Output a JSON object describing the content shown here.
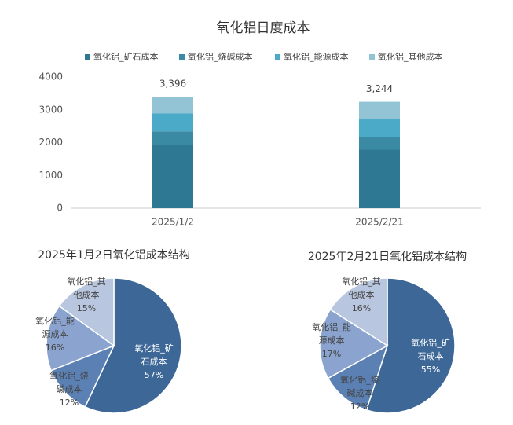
{
  "chart_data": [
    {
      "type": "bar",
      "title": "氧化铝日度成本",
      "stacked": true,
      "legend": "top",
      "categories": [
        "2025/1/2",
        "2025/2/21"
      ],
      "series": [
        {
          "name": "氧化铝_矿石成本",
          "color": "#2e7893",
          "values": [
            1936,
            1784
          ]
        },
        {
          "name": "氧化铝_烧碱成本",
          "color": "#3a8aa4",
          "values": [
            407,
            389
          ]
        },
        {
          "name": "氧化铝_能源成本",
          "color": "#4aaac8",
          "values": [
            543,
            551
          ]
        },
        {
          "name": "氧化铝_其他成本",
          "color": "#93c4d6",
          "values": [
            510,
            520
          ]
        }
      ],
      "totals": [
        3396,
        3244
      ],
      "total_labels": [
        "3,396",
        "3,244"
      ],
      "ylim": [
        0,
        4000
      ],
      "yticks": [
        0,
        1000,
        2000,
        3000,
        4000
      ]
    },
    {
      "type": "pie",
      "title": "2025年1月2日氧化铝成本结构",
      "categories": [
        "氧化铝_矿石成本",
        "氧化铝_烧碱成本",
        "氧化铝_能源成本",
        "氧化铝_其他成本"
      ],
      "values": [
        57,
        12,
        16,
        15
      ],
      "value_labels": [
        "57%",
        "12%",
        "16%",
        "15%"
      ],
      "colors": [
        "#3d6797",
        "#5b80b4",
        "#8aa3cf",
        "#b8c6df"
      ]
    },
    {
      "type": "pie",
      "title": "2025年2月21日氧化铝成本结构",
      "categories": [
        "氧化铝_矿石成本",
        "氧化铝_烧碱成本",
        "氧化铝_能源成本",
        "氧化铝_其他成本"
      ],
      "values": [
        55,
        12,
        17,
        16
      ],
      "value_labels": [
        "55%",
        "12%",
        "17%",
        "16%"
      ],
      "colors": [
        "#3d6797",
        "#5b80b4",
        "#8aa3cf",
        "#b8c6df"
      ]
    }
  ]
}
